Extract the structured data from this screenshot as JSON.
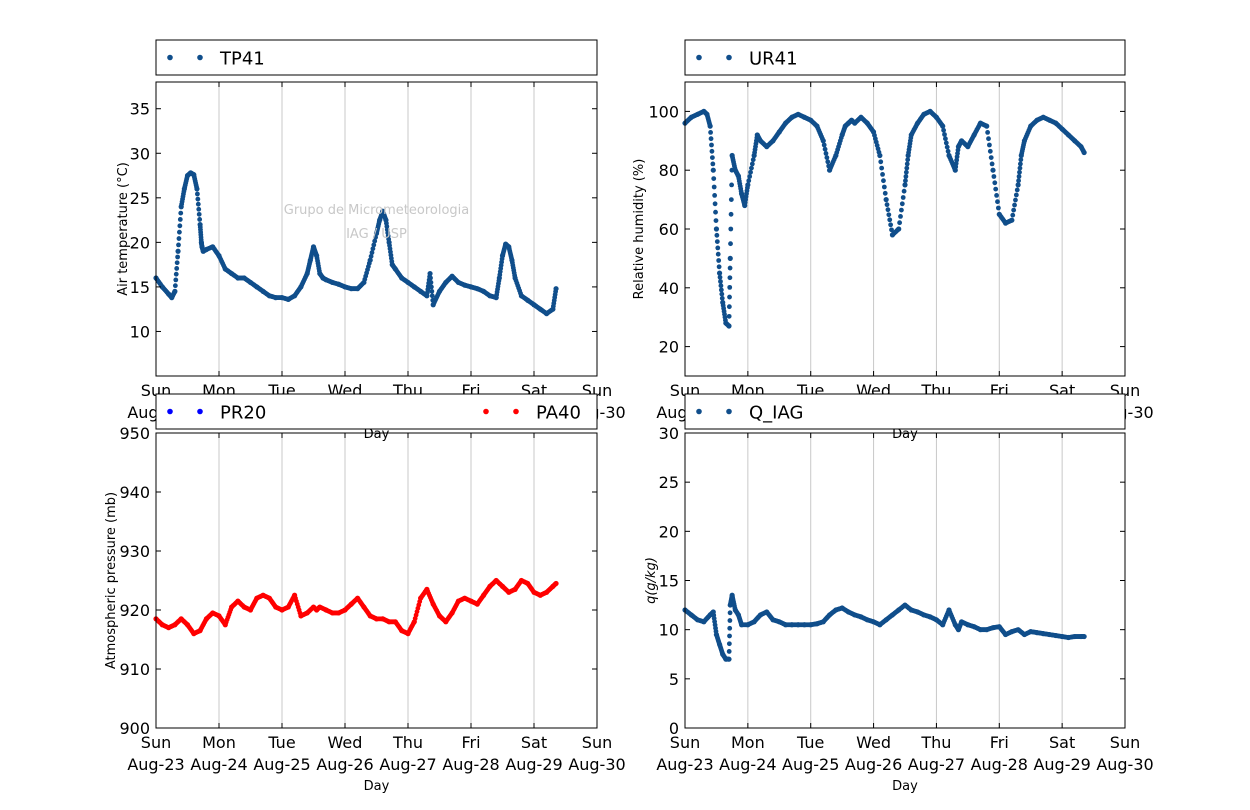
{
  "x_ticks": {
    "days": [
      "Sun",
      "Mon",
      "Tue",
      "Wed",
      "Thu",
      "Fri",
      "Sat",
      "Sun"
    ],
    "dates": [
      "Aug-23",
      "Aug-24",
      "Aug-25",
      "Aug-26",
      "Aug-27",
      "Aug-28",
      "Aug-29",
      "Aug-30"
    ]
  },
  "watermark": {
    "line1": "Grupo de Micrometeorologia",
    "line2": "IAG / USP"
  },
  "colors": {
    "blue_series": "#104e8b",
    "pr20": "#0000ff",
    "pa40": "#ff0000",
    "grid": "#c8c8c8"
  },
  "chart_data": [
    {
      "type": "scatter",
      "ylabel": "Air temperature (°C)",
      "xlabel": "Day",
      "ylim": [
        5,
        38
      ],
      "yticks": [
        10,
        15,
        20,
        25,
        30,
        35
      ],
      "xlim": [
        "Aug-23",
        "Aug-30"
      ],
      "grid": "vertical",
      "legend": "top",
      "series": [
        {
          "name": "TP41",
          "color": "#104e8b",
          "x": [
            0.0,
            0.1,
            0.2,
            0.25,
            0.3,
            0.35,
            0.4,
            0.45,
            0.5,
            0.55,
            0.6,
            0.65,
            0.7,
            0.72,
            0.73,
            0.75,
            0.8,
            0.9,
            1.0,
            1.1,
            1.2,
            1.3,
            1.4,
            1.5,
            1.6,
            1.7,
            1.8,
            1.9,
            2.0,
            2.1,
            2.2,
            2.3,
            2.4,
            2.45,
            2.5,
            2.55,
            2.6,
            2.65,
            2.7,
            2.8,
            2.9,
            3.0,
            3.1,
            3.2,
            3.3,
            3.4,
            3.5,
            3.55,
            3.6,
            3.65,
            3.7,
            3.75,
            3.8,
            3.9,
            4.0,
            4.1,
            4.2,
            4.3,
            4.35,
            4.4,
            4.5,
            4.6,
            4.7,
            4.8,
            4.9,
            5.0,
            5.1,
            5.2,
            5.3,
            5.4,
            5.45,
            5.5,
            5.55,
            5.6,
            5.65,
            5.7,
            5.8,
            5.9,
            6.0,
            6.1,
            6.2,
            6.3,
            6.35
          ],
          "y": [
            16.0,
            15.0,
            14.2,
            13.8,
            14.5,
            19.0,
            24.0,
            26.0,
            27.5,
            27.8,
            27.6,
            26.0,
            22.0,
            20.0,
            19.5,
            19.0,
            19.2,
            19.5,
            18.5,
            17.0,
            16.5,
            16.0,
            16.0,
            15.5,
            15.0,
            14.5,
            14.0,
            13.8,
            13.8,
            13.6,
            14.0,
            15.0,
            16.5,
            18.0,
            19.5,
            18.5,
            16.5,
            16.0,
            15.8,
            15.5,
            15.3,
            15.0,
            14.8,
            14.8,
            15.5,
            18.0,
            21.0,
            22.5,
            23.5,
            22.5,
            20.0,
            17.5,
            17.0,
            16.0,
            15.5,
            15.0,
            14.5,
            14.0,
            16.5,
            13.0,
            14.5,
            15.5,
            16.2,
            15.5,
            15.2,
            15.0,
            14.8,
            14.5,
            14.0,
            13.8,
            16.0,
            18.5,
            19.8,
            19.5,
            18.0,
            16.0,
            14.0,
            13.5,
            13.0,
            12.5,
            12.0,
            12.5,
            14.8
          ]
        }
      ]
    },
    {
      "type": "scatter",
      "ylabel": "Relative humidity (%)",
      "xlabel": "Day",
      "ylim": [
        10,
        110
      ],
      "yticks": [
        20,
        40,
        60,
        80,
        100
      ],
      "xlim": [
        "Aug-23",
        "Aug-30"
      ],
      "grid": "vertical",
      "legend": "top",
      "series": [
        {
          "name": "UR41",
          "color": "#104e8b",
          "x": [
            0.0,
            0.1,
            0.2,
            0.3,
            0.35,
            0.4,
            0.45,
            0.5,
            0.55,
            0.6,
            0.65,
            0.7,
            0.72,
            0.75,
            0.8,
            0.85,
            0.9,
            0.95,
            1.0,
            1.1,
            1.15,
            1.2,
            1.3,
            1.4,
            1.5,
            1.6,
            1.7,
            1.8,
            1.9,
            2.0,
            2.1,
            2.2,
            2.3,
            2.4,
            2.5,
            2.55,
            2.6,
            2.65,
            2.7,
            2.8,
            2.9,
            3.0,
            3.1,
            3.2,
            3.3,
            3.4,
            3.5,
            3.55,
            3.6,
            3.7,
            3.8,
            3.9,
            4.0,
            4.1,
            4.2,
            4.3,
            4.35,
            4.4,
            4.5,
            4.6,
            4.7,
            4.8,
            4.9,
            5.0,
            5.1,
            5.2,
            5.3,
            5.35,
            5.4,
            5.5,
            5.6,
            5.7,
            5.8,
            5.9,
            6.0,
            6.1,
            6.2,
            6.3,
            6.35
          ],
          "y": [
            96,
            98,
            99,
            100,
            99,
            95,
            80,
            60,
            45,
            35,
            28,
            27,
            50,
            85,
            80,
            78,
            72,
            68,
            75,
            85,
            92,
            90,
            88,
            90,
            93,
            96,
            98,
            99,
            98,
            97,
            95,
            90,
            80,
            85,
            92,
            95,
            96,
            97,
            96,
            98,
            96,
            93,
            85,
            70,
            58,
            60,
            75,
            85,
            92,
            96,
            99,
            100,
            98,
            95,
            85,
            80,
            88,
            90,
            88,
            92,
            96,
            95,
            80,
            65,
            62,
            63,
            75,
            85,
            90,
            95,
            97,
            98,
            97,
            96,
            94,
            92,
            90,
            88,
            86
          ]
        }
      ]
    },
    {
      "type": "scatter",
      "ylabel": "Atmospheric pressure (mb)",
      "xlabel": "Day",
      "ylim": [
        900,
        950
      ],
      "yticks": [
        900,
        910,
        920,
        930,
        940,
        950
      ],
      "xlim": [
        "Aug-23",
        "Aug-30"
      ],
      "grid": "vertical",
      "legend": "top",
      "series": [
        {
          "name": "PR20",
          "color": "#0000ff",
          "x": [],
          "y": []
        },
        {
          "name": "PA40",
          "color": "#ff0000",
          "x": [
            0.0,
            0.1,
            0.2,
            0.3,
            0.4,
            0.5,
            0.6,
            0.7,
            0.8,
            0.9,
            1.0,
            1.1,
            1.2,
            1.3,
            1.4,
            1.5,
            1.6,
            1.7,
            1.8,
            1.9,
            2.0,
            2.1,
            2.2,
            2.3,
            2.4,
            2.5,
            2.55,
            2.6,
            2.7,
            2.8,
            2.9,
            3.0,
            3.1,
            3.2,
            3.3,
            3.4,
            3.5,
            3.6,
            3.7,
            3.8,
            3.9,
            4.0,
            4.1,
            4.2,
            4.3,
            4.4,
            4.5,
            4.6,
            4.7,
            4.8,
            4.9,
            5.0,
            5.1,
            5.2,
            5.3,
            5.4,
            5.5,
            5.6,
            5.7,
            5.8,
            5.9,
            6.0,
            6.1,
            6.2,
            6.3,
            6.35
          ],
          "y": [
            918.5,
            917.5,
            917.0,
            917.5,
            918.5,
            917.5,
            916.0,
            916.5,
            918.5,
            919.5,
            919.0,
            917.5,
            920.5,
            921.5,
            920.5,
            920.0,
            922.0,
            922.5,
            922.0,
            920.5,
            920.0,
            920.5,
            922.5,
            919.0,
            919.5,
            920.5,
            920.0,
            920.5,
            920.0,
            919.5,
            919.5,
            920.0,
            921.0,
            922.0,
            920.5,
            919.0,
            918.5,
            918.5,
            918.0,
            918.0,
            916.5,
            916.0,
            918.0,
            922.0,
            923.5,
            921.0,
            919.0,
            918.0,
            919.5,
            921.5,
            922.0,
            921.5,
            921.0,
            922.5,
            924.0,
            925.0,
            924.0,
            923.0,
            923.5,
            925.0,
            924.5,
            923.0,
            922.5,
            923.0,
            924.0,
            924.5
          ]
        }
      ]
    },
    {
      "type": "scatter",
      "ylabel": "q(g/kg)",
      "xlabel": "Day",
      "ylim": [
        0,
        30
      ],
      "yticks": [
        0,
        5,
        10,
        15,
        20,
        25,
        30
      ],
      "xlim": [
        "Aug-23",
        "Aug-30"
      ],
      "grid": "vertical",
      "legend": "top",
      "series": [
        {
          "name": "Q_IAG",
          "color": "#104e8b",
          "x": [
            0.0,
            0.1,
            0.2,
            0.3,
            0.4,
            0.45,
            0.5,
            0.55,
            0.6,
            0.65,
            0.7,
            0.72,
            0.75,
            0.8,
            0.85,
            0.9,
            1.0,
            1.1,
            1.2,
            1.3,
            1.4,
            1.5,
            1.6,
            1.7,
            1.8,
            1.9,
            2.0,
            2.1,
            2.2,
            2.3,
            2.4,
            2.5,
            2.6,
            2.7,
            2.8,
            2.9,
            3.0,
            3.1,
            3.2,
            3.3,
            3.4,
            3.5,
            3.6,
            3.7,
            3.8,
            3.9,
            4.0,
            4.1,
            4.2,
            4.3,
            4.35,
            4.4,
            4.5,
            4.6,
            4.7,
            4.8,
            4.9,
            5.0,
            5.1,
            5.2,
            5.3,
            5.4,
            5.5,
            5.6,
            5.7,
            5.8,
            5.9,
            6.0,
            6.1,
            6.2,
            6.3,
            6.35
          ],
          "y": [
            12.0,
            11.5,
            11.0,
            10.8,
            11.5,
            11.8,
            9.5,
            8.5,
            7.5,
            7.0,
            7.0,
            12.5,
            13.5,
            12.0,
            11.5,
            10.5,
            10.5,
            10.8,
            11.5,
            11.8,
            11.0,
            10.8,
            10.5,
            10.5,
            10.5,
            10.5,
            10.5,
            10.6,
            10.8,
            11.5,
            12.0,
            12.2,
            11.8,
            11.5,
            11.3,
            11.0,
            10.8,
            10.5,
            11.0,
            11.5,
            12.0,
            12.5,
            12.0,
            11.8,
            11.5,
            11.3,
            11.0,
            10.5,
            12.0,
            10.5,
            10.0,
            10.8,
            10.5,
            10.3,
            10.0,
            10.0,
            10.2,
            10.3,
            9.5,
            9.8,
            10.0,
            9.5,
            9.8,
            9.7,
            9.6,
            9.5,
            9.4,
            9.3,
            9.2,
            9.3,
            9.3,
            9.3
          ]
        }
      ]
    }
  ]
}
